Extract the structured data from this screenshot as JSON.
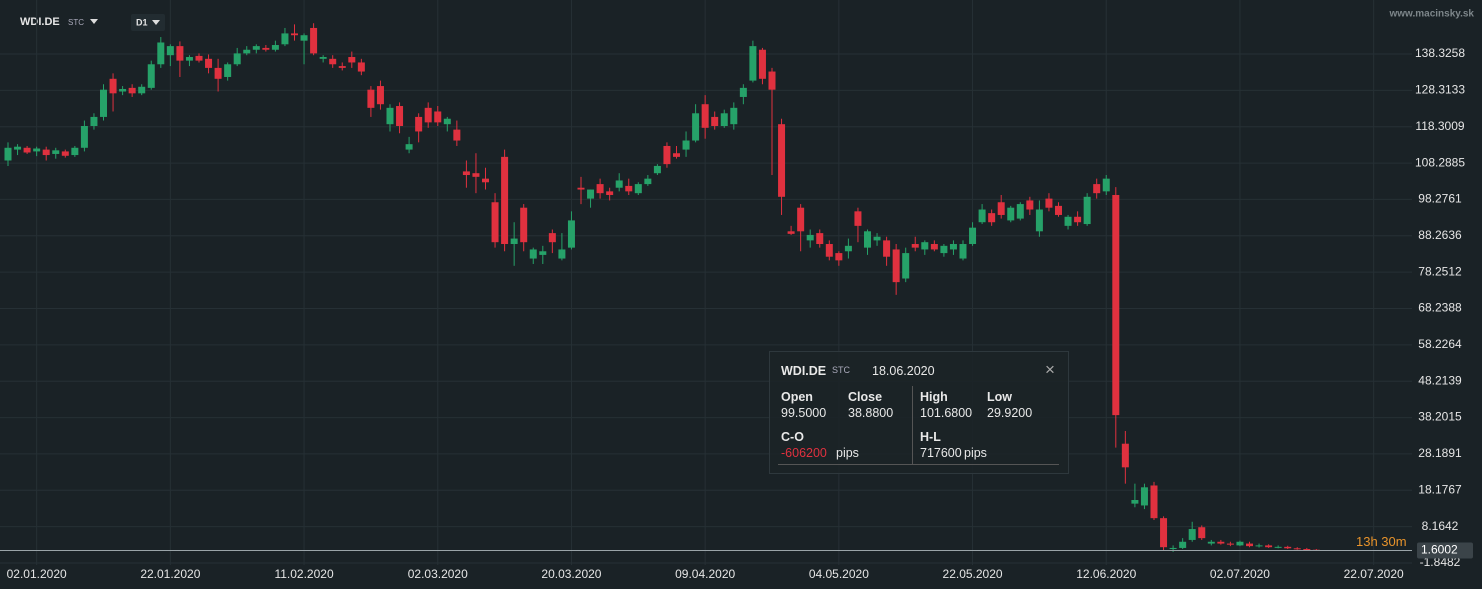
{
  "chart_data": {
    "type": "candlestick",
    "symbol": "WDI.DE",
    "exchange": "STC",
    "timeframe": "D1",
    "watermark": "www.macinsky.sk",
    "categories": [
      null,
      null,
      null,
      "02.01.2020",
      null,
      null,
      null,
      null,
      null,
      null,
      null,
      null,
      null,
      null,
      null,
      null,
      null,
      "22.01.2020",
      null,
      null,
      null,
      null,
      null,
      null,
      null,
      null,
      null,
      null,
      null,
      null,
      null,
      "11.02.2020",
      null,
      null,
      null,
      null,
      null,
      null,
      null,
      null,
      null,
      null,
      null,
      null,
      null,
      "02.03.2020",
      null,
      null,
      null,
      null,
      null,
      null,
      null,
      null,
      null,
      null,
      null,
      null,
      null,
      "20.03.2020",
      null,
      null,
      null,
      null,
      null,
      null,
      null,
      null,
      null,
      null,
      null,
      null,
      null,
      "09.04.2020",
      null,
      null,
      null,
      null,
      null,
      null,
      null,
      null,
      null,
      null,
      null,
      null,
      null,
      "04.05.2020",
      null,
      null,
      null,
      null,
      null,
      null,
      null,
      null,
      null,
      null,
      null,
      null,
      null,
      "22.05.2020",
      null,
      null,
      null,
      null,
      null,
      null,
      null,
      null,
      null,
      null,
      null,
      null,
      null,
      "12.06.2020",
      null,
      null,
      null,
      null,
      null,
      null,
      null,
      null,
      null,
      null,
      null,
      null,
      null,
      "02.07.2020",
      null,
      null,
      null,
      null,
      null,
      null,
      null,
      null,
      null,
      null,
      null,
      null,
      null,
      "22.07.2020"
    ],
    "ohlc": [
      [
        109,
        114,
        107.5,
        112.5
      ],
      [
        112,
        113.5,
        110.5,
        112.8
      ],
      [
        112.5,
        113,
        110.8,
        111.2
      ],
      [
        111.5,
        112.8,
        110.2,
        112.3
      ],
      [
        112,
        112.8,
        109,
        110.5
      ],
      [
        110.8,
        112.5,
        109.5,
        111.8
      ],
      [
        111.5,
        112,
        109.8,
        110.3
      ],
      [
        110.5,
        113,
        110,
        112.5
      ],
      [
        112.5,
        120,
        111.5,
        118.5
      ],
      [
        118.5,
        122,
        117.5,
        121
      ],
      [
        121,
        130,
        120,
        128.5
      ],
      [
        131.5,
        133,
        122.5,
        127.5
      ],
      [
        128,
        129.5,
        127,
        128.7
      ],
      [
        129,
        130,
        126.5,
        127.5
      ],
      [
        127.5,
        130,
        127,
        129.3
      ],
      [
        129,
        136.5,
        128.5,
        135.5
      ],
      [
        135.5,
        143,
        134.5,
        141.5
      ],
      [
        138,
        141,
        135,
        140.5
      ],
      [
        140.5,
        141.8,
        132,
        136.5
      ],
      [
        136.5,
        138,
        135,
        137.5
      ],
      [
        137.8,
        138.5,
        136,
        136.5
      ],
      [
        137,
        138.2,
        133,
        134.5
      ],
      [
        134.5,
        137,
        128,
        131.5
      ],
      [
        132,
        136,
        131,
        135.5
      ],
      [
        135.5,
        140,
        135,
        138.5
      ],
      [
        138.5,
        140.5,
        138,
        139.5
      ],
      [
        139.5,
        141,
        138.5,
        140.5
      ],
      [
        140,
        140.8,
        139,
        139.5
      ],
      [
        139.5,
        142,
        139,
        140.8
      ],
      [
        141,
        145.5,
        140.5,
        144
      ],
      [
        144,
        146.5,
        142,
        143.5
      ],
      [
        142,
        144,
        135.5,
        143.5
      ],
      [
        145.5,
        146.8,
        138,
        138.5
      ],
      [
        137,
        138,
        136,
        137.5
      ],
      [
        137,
        138,
        134.5,
        135.5
      ],
      [
        135,
        136,
        133.8,
        134.5
      ],
      [
        137.5,
        139,
        134.5,
        136
      ],
      [
        136,
        137,
        132.5,
        133.5
      ],
      [
        128.5,
        129.5,
        121,
        123.5
      ],
      [
        129.5,
        131,
        123,
        124.5
      ],
      [
        119,
        124.5,
        117,
        123.5
      ],
      [
        124,
        125,
        116.5,
        118.5
      ],
      [
        112,
        115.5,
        111,
        113.5
      ],
      [
        121,
        122,
        114,
        117
      ],
      [
        123.5,
        125,
        118,
        119.5
      ],
      [
        122.5,
        124,
        118.5,
        119.5
      ],
      [
        119,
        121,
        117,
        120.5
      ],
      [
        117.5,
        120,
        113,
        114.5
      ],
      [
        106,
        109,
        101.5,
        105
      ],
      [
        105.5,
        111,
        100,
        104.5
      ],
      [
        104,
        107,
        101,
        103
      ],
      [
        97.5,
        100,
        85,
        86.5
      ],
      [
        110,
        112,
        84,
        86
      ],
      [
        86,
        92,
        80,
        87.5
      ],
      [
        96,
        97,
        84,
        86.5
      ],
      [
        82,
        85,
        80.5,
        84.5
      ],
      [
        83,
        85.5,
        80.5,
        84
      ],
      [
        89,
        90,
        83.5,
        86.5
      ],
      [
        82,
        89,
        81.5,
        84.5
      ],
      [
        85,
        95,
        84.5,
        92.5
      ],
      [
        101.5,
        104.5,
        97,
        101
      ],
      [
        98.5,
        101,
        96,
        101
      ],
      [
        102.5,
        104,
        98.5,
        100
      ],
      [
        100.5,
        101.5,
        98,
        99.5
      ],
      [
        101.5,
        105.5,
        100.5,
        103.5
      ],
      [
        102,
        104,
        99.5,
        100.5
      ],
      [
        100,
        103,
        99.5,
        102.5
      ],
      [
        102.5,
        105,
        102,
        104
      ],
      [
        105.5,
        108,
        105,
        107.5
      ],
      [
        113,
        114,
        107,
        108
      ],
      [
        111,
        113,
        109.5,
        110
      ],
      [
        112,
        117,
        110,
        114.5
      ],
      [
        114.5,
        124.5,
        114,
        122
      ],
      [
        124.5,
        127,
        115,
        118
      ],
      [
        121,
        122.5,
        117.5,
        118.5
      ],
      [
        118.5,
        123,
        118,
        122
      ],
      [
        119,
        125,
        117.5,
        123.5
      ],
      [
        126.5,
        130,
        124.5,
        129
      ],
      [
        131,
        142,
        130.5,
        140.5
      ],
      [
        139.5,
        140,
        130,
        131.5
      ],
      [
        133.5,
        134.5,
        105,
        128.5
      ],
      [
        119,
        120.5,
        94,
        99
      ],
      [
        89.5,
        91,
        88.5,
        88.8
      ],
      [
        96,
        97,
        84,
        89.5
      ],
      [
        87,
        90,
        85,
        88.5
      ],
      [
        89,
        90,
        85,
        86
      ],
      [
        86,
        87,
        81.5,
        82.5
      ],
      [
        83.5,
        84,
        80,
        81.5
      ],
      [
        84,
        87.5,
        82,
        85.5
      ],
      [
        95,
        96,
        86.5,
        91
      ],
      [
        85,
        90,
        83,
        89.5
      ],
      [
        87,
        89,
        85.5,
        88
      ],
      [
        87,
        88,
        80,
        82.5
      ],
      [
        84.5,
        86,
        72,
        75.5
      ],
      [
        76.5,
        85,
        75.5,
        83.5
      ],
      [
        86,
        88,
        84,
        85
      ],
      [
        84.5,
        87,
        83,
        86.5
      ],
      [
        86,
        87,
        84,
        84.5
      ],
      [
        83.5,
        86,
        82.5,
        85.5
      ],
      [
        84.5,
        87,
        83,
        86
      ],
      [
        82,
        87,
        81.5,
        86
      ],
      [
        86,
        92,
        85.5,
        90.5
      ],
      [
        92,
        97,
        91.5,
        95.5
      ],
      [
        94.5,
        95.5,
        91,
        92
      ],
      [
        97.5,
        99.5,
        93,
        94
      ],
      [
        92.5,
        96.5,
        92,
        96
      ],
      [
        93,
        97.5,
        92.5,
        97
      ],
      [
        98,
        99,
        94,
        95.5
      ],
      [
        89.5,
        98,
        88,
        95.5
      ],
      [
        98.5,
        100,
        95,
        96
      ],
      [
        96.5,
        97.5,
        93.5,
        94
      ],
      [
        91,
        94,
        90,
        93.5
      ],
      [
        93.5,
        95,
        91,
        92
      ],
      [
        91.5,
        100,
        91,
        99
      ],
      [
        102.5,
        104,
        98.5,
        100
      ],
      [
        100.5,
        105,
        99.5,
        104
      ],
      [
        99.5,
        101.68,
        29.92,
        38.88
      ],
      [
        31,
        34.5,
        20,
        24.5
      ],
      [
        14.5,
        20,
        13.5,
        15.5
      ],
      [
        14,
        20,
        13,
        19
      ],
      [
        19.5,
        20.5,
        10,
        10.5
      ],
      [
        10.5,
        11,
        1.5,
        2.5
      ],
      [
        2,
        3,
        1.2,
        2.3
      ],
      [
        2.3,
        5,
        2,
        4
      ],
      [
        4.5,
        9.5,
        4,
        7.5
      ],
      [
        8,
        8.5,
        4.5,
        5
      ],
      [
        3.5,
        4.5,
        3,
        4
      ],
      [
        4,
        4.5,
        3.2,
        3.5
      ],
      [
        3.5,
        4,
        2.8,
        3.2
      ],
      [
        3,
        4.3,
        2.8,
        4
      ],
      [
        3.5,
        4,
        2.5,
        2.8
      ],
      [
        2.8,
        3.5,
        2.4,
        3
      ],
      [
        3,
        3.3,
        2.3,
        2.5
      ],
      [
        2.5,
        3,
        2.2,
        2.6
      ],
      [
        2.6,
        2.9,
        2,
        2.2
      ],
      [
        2.2,
        2.5,
        1.8,
        2
      ],
      [
        2,
        2.3,
        1.6,
        1.8
      ],
      [
        1.8,
        2,
        1.5,
        1.6002
      ],
      null,
      null,
      null,
      null,
      null,
      null
    ],
    "up_color": "#26a269",
    "down_color": "#e0313f",
    "ylim": [
      -2.4,
      153.2
    ],
    "yticks": [
      -1.8482,
      8.1642,
      18.1767,
      28.1891,
      38.2015,
      48.2139,
      58.2264,
      68.2388,
      78.2512,
      88.2636,
      98.2761,
      108.2885,
      118.3009,
      128.3133,
      138.3258
    ],
    "grid": true,
    "last_price": 1.6002,
    "countdown": "13h 30m",
    "tooltip": {
      "symbol": "WDI.DE",
      "exchange": "STC",
      "date": "18.06.2020",
      "open_label": "Open",
      "close_label": "Close",
      "high_label": "High",
      "low_label": "Low",
      "open": "99.5000",
      "close": "38.8800",
      "high": "101.6800",
      "low": "29.9200",
      "co_label": "C-O",
      "hl_label": "H-L",
      "co": "-606200",
      "hl": "717600",
      "unit": "pips"
    }
  }
}
